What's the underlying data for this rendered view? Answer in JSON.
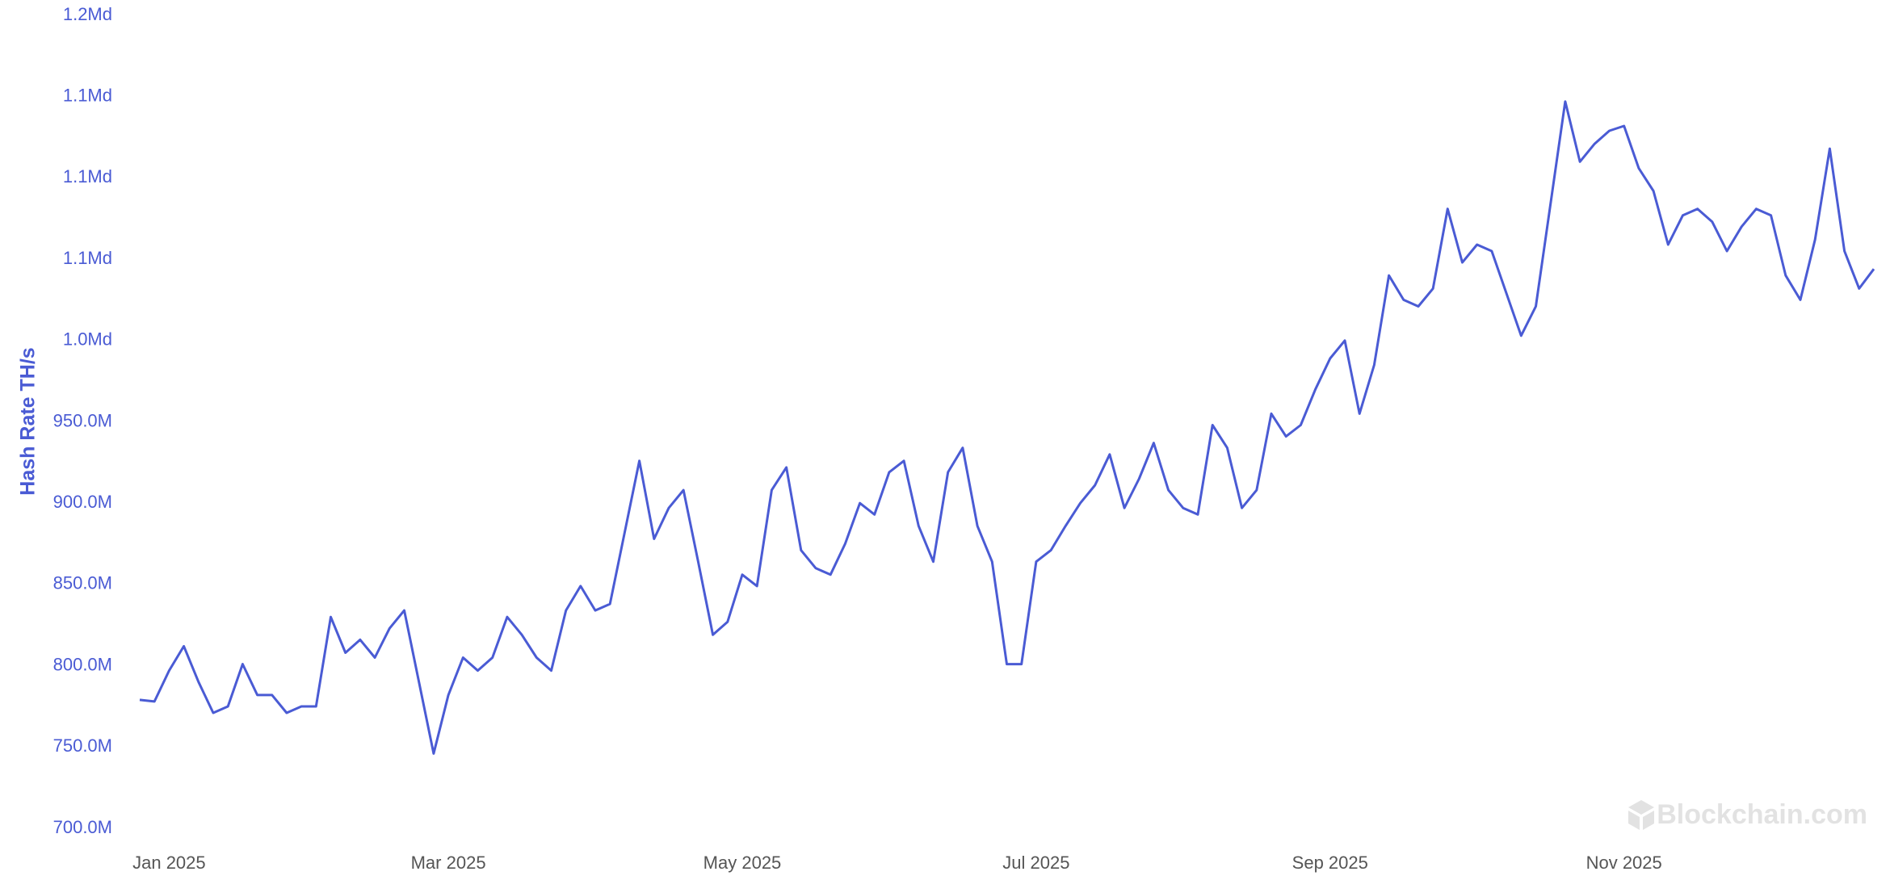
{
  "chart_data": {
    "type": "line",
    "y_label": "Hash Rate TH/s",
    "watermark": "Blockchain.com",
    "color": "#4a5bd4",
    "grid": false,
    "categories": [
      null,
      null,
      "Jan 2025",
      null,
      null,
      null,
      null,
      null,
      null,
      null,
      null,
      null,
      null,
      null,
      null,
      null,
      null,
      null,
      null,
      null,
      null,
      "Mar 2025",
      null,
      null,
      null,
      null,
      null,
      null,
      null,
      null,
      null,
      null,
      null,
      null,
      null,
      null,
      null,
      null,
      null,
      null,
      null,
      "May 2025",
      null,
      null,
      null,
      null,
      null,
      null,
      null,
      null,
      null,
      null,
      null,
      null,
      null,
      null,
      null,
      null,
      null,
      null,
      null,
      "Jul 2025",
      null,
      null,
      null,
      null,
      null,
      null,
      null,
      null,
      null,
      null,
      null,
      null,
      null,
      null,
      null,
      null,
      null,
      null,
      null,
      "Sep 2025",
      null,
      null,
      null,
      null,
      null,
      null,
      null,
      null,
      null,
      null,
      null,
      null,
      null,
      null,
      null,
      null,
      null,
      null,
      null,
      "Nov 2025",
      null,
      null,
      null,
      null,
      null,
      null,
      null,
      null,
      null,
      null,
      null,
      null,
      null,
      null,
      null,
      null,
      null
    ],
    "values": [
      779000000,
      778000000,
      797000000,
      812000000,
      790000000,
      771000000,
      775000000,
      801000000,
      782000000,
      782000000,
      771000000,
      775000000,
      775000000,
      830000000,
      808000000,
      816000000,
      805000000,
      823000000,
      834000000,
      790000000,
      746000000,
      782000000,
      805000000,
      797000000,
      805000000,
      830000000,
      819000000,
      805000000,
      797000000,
      834000000,
      849000000,
      834000000,
      838000000,
      882000000,
      926000000,
      878000000,
      897000000,
      908000000,
      864000000,
      819000000,
      827000000,
      856000000,
      849000000,
      908000000,
      922000000,
      871000000,
      860000000,
      856000000,
      875000000,
      900000000,
      893000000,
      919000000,
      926000000,
      886000000,
      864000000,
      919000000,
      934000000,
      886000000,
      864000000,
      801000000,
      801000000,
      864000000,
      871000000,
      886000000,
      900000000,
      911000000,
      930000000,
      897000000,
      915000000,
      937000000,
      908000000,
      897000000,
      893000000,
      948000000,
      934000000,
      897000000,
      908000000,
      955000000,
      941000000,
      948000000,
      970000000,
      989000000,
      1000000000,
      955000000,
      985000000,
      1040000000,
      1025000000,
      1021000000,
      1032000000,
      1081000000,
      1048000000,
      1059000000,
      1055000000,
      1029000000,
      1003000000,
      1021000000,
      1084000000,
      1147000000,
      1110000000,
      1121000000,
      1129000000,
      1132000000,
      1106000000,
      1092000000,
      1059000000,
      1077000000,
      1081000000,
      1073000000,
      1055000000,
      1070000000,
      1081000000,
      1077000000,
      1040000000,
      1025000000,
      1062000000,
      1118000000,
      1055000000,
      1032000000,
      1044000000
    ],
    "ylim": [
      700000000,
      1200000000
    ],
    "yticks": [
      {
        "value": 700000000,
        "label": "700.0M"
      },
      {
        "value": 750000000,
        "label": "750.0M"
      },
      {
        "value": 800000000,
        "label": "800.0M"
      },
      {
        "value": 850000000,
        "label": "850.0M"
      },
      {
        "value": 900000000,
        "label": "900.0M"
      },
      {
        "value": 950000000,
        "label": "950.0M"
      },
      {
        "value": 1000000000,
        "label": "1.0Md"
      },
      {
        "value": 1050000000,
        "label": "1.1Md"
      },
      {
        "value": 1100000000,
        "label": "1.1Md"
      },
      {
        "value": 1150000000,
        "label": "1.1Md"
      },
      {
        "value": 1200000000,
        "label": "1.2Md"
      }
    ]
  }
}
